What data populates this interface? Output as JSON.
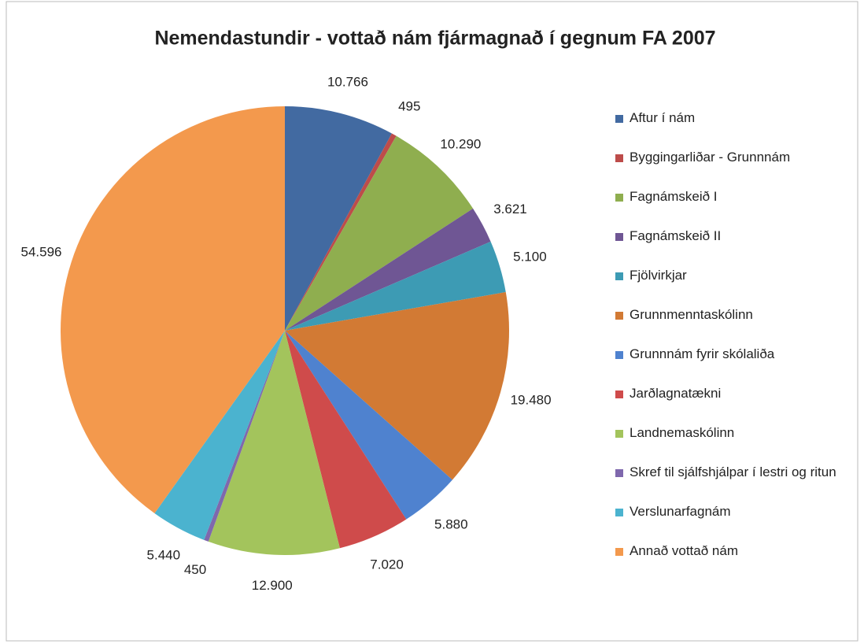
{
  "chart_data": {
    "type": "pie",
    "title": "Nemendastundir - vottað nám fjármagnað í gegnum FA 2007",
    "categories": [
      "Aftur í nám",
      "Byggingarliðar - Grunnnám",
      "Fagnámskeið I",
      "Fagnámskeið II",
      "Fjölvirkjar",
      "Grunnmenntaskólinn",
      "Grunnnám fyrir skólaliða",
      "Jarðlagnatækni",
      "Landnemaskólinn",
      "Skref til sjálfshjálpar í lestri og ritun",
      "Verslunarfagnám",
      "Annað vottað nám"
    ],
    "values": [
      10766,
      495,
      10290,
      3621,
      5100,
      19480,
      5880,
      7020,
      12900,
      450,
      5440,
      54596
    ],
    "value_labels": [
      "10.766",
      "495",
      "10.290",
      "3.621",
      "5.100",
      "19.480",
      "5.880",
      "7.020",
      "12.900",
      "450",
      "5.440",
      "54.596"
    ],
    "colors": [
      "#426aa1",
      "#bd4c4a",
      "#8fae4f",
      "#6f5694",
      "#3d9bb4",
      "#d27a34",
      "#4f82cf",
      "#cf4b4b",
      "#a3c45c",
      "#7f68ad",
      "#4bb3cf",
      "#f3994d"
    ],
    "legend": "right"
  }
}
